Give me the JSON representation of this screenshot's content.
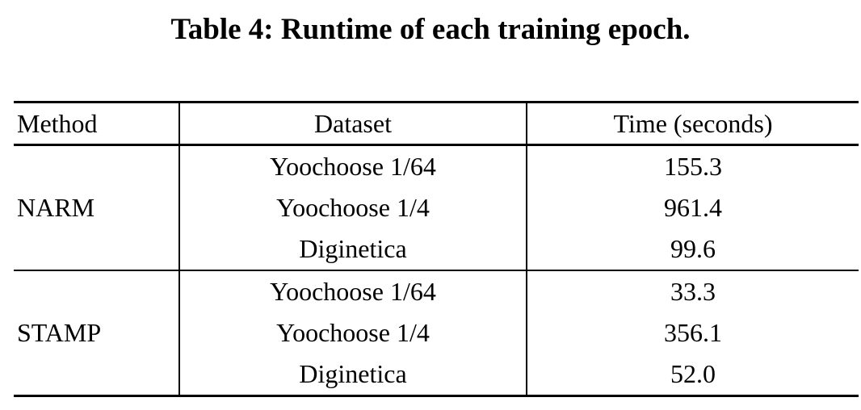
{
  "title": "Table 4: Runtime of each training epoch.",
  "table": {
    "headers": {
      "method": "Method",
      "dataset": "Dataset",
      "time": "Time (seconds)"
    },
    "groups": [
      {
        "method": "NARM",
        "rows": [
          {
            "dataset": "Yoochoose 1/64",
            "time": "155.3"
          },
          {
            "dataset": "Yoochoose 1/4",
            "time": "961.4"
          },
          {
            "dataset": "Diginetica",
            "time": "99.6"
          }
        ]
      },
      {
        "method": "STAMP",
        "rows": [
          {
            "dataset": "Yoochoose 1/64",
            "time": "33.3"
          },
          {
            "dataset": "Yoochoose 1/4",
            "time": "356.1"
          },
          {
            "dataset": "Diginetica",
            "time": "52.0"
          }
        ]
      }
    ]
  },
  "colors": {
    "background": "#ffffff",
    "text": "#000000",
    "rules": "#000000"
  },
  "chart_data": {
    "type": "table",
    "title": "Table 4: Runtime of each training epoch.",
    "columns": [
      "Method",
      "Dataset",
      "Time (seconds)"
    ],
    "rows": [
      [
        "NARM",
        "Yoochoose 1/64",
        155.3
      ],
      [
        "NARM",
        "Yoochoose 1/4",
        961.4
      ],
      [
        "NARM",
        "Diginetica",
        99.6
      ],
      [
        "STAMP",
        "Yoochoose 1/64",
        33.3
      ],
      [
        "STAMP",
        "Yoochoose 1/4",
        356.1
      ],
      [
        "STAMP",
        "Diginetica",
        52.0
      ]
    ]
  }
}
